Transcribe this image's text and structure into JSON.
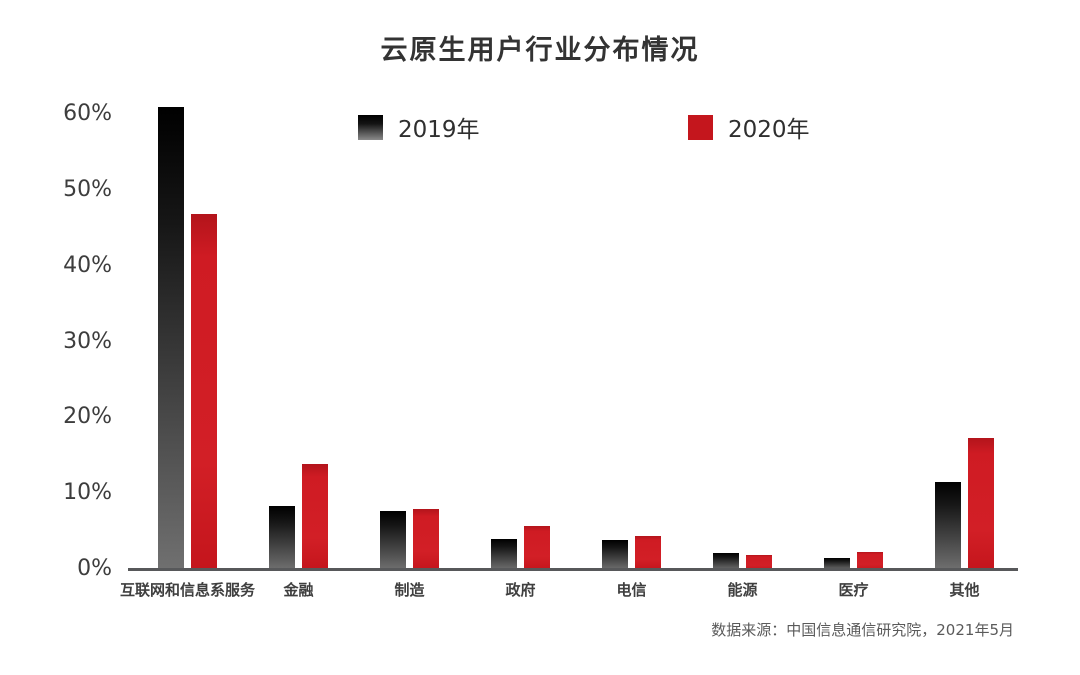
{
  "title": "云原生用户行业分布情况",
  "legend": [
    {
      "label": "2019年",
      "color": "#141414"
    },
    {
      "label": "2020年",
      "color": "#c4161d"
    }
  ],
  "source": "数据来源：中国信息通信研究院，2021年5月",
  "colors": {
    "bar_2019_top": "#000000",
    "bar_2019_bottom": "#707070",
    "bar_2020": "#cc1a22",
    "axis_line": "#57585a",
    "text": "#333333"
  },
  "chart_data": {
    "type": "bar",
    "categories": [
      "互联网和信息系服务",
      "金融",
      "制造",
      "政府",
      "电信",
      "能源",
      "医疗",
      "其他"
    ],
    "series": [
      {
        "name": "2019年",
        "values": [
          61,
          8.4,
          7.8,
          4.1,
          3.9,
          2.2,
          1.6,
          11.6
        ]
      },
      {
        "name": "2020年",
        "values": [
          47,
          14,
          8.1,
          5.8,
          4.5,
          2.0,
          2.4,
          17.4
        ]
      }
    ],
    "title": "云原生用户行业分布情况",
    "xlabel": "",
    "ylabel": "",
    "ylim": [
      0,
      60
    ],
    "yticks": [
      0,
      10,
      20,
      30,
      40,
      50,
      60
    ],
    "ytick_labels": [
      "0%",
      "10%",
      "20%",
      "30%",
      "40%",
      "50%",
      "60%"
    ],
    "grid": false,
    "legend_position": "top"
  }
}
